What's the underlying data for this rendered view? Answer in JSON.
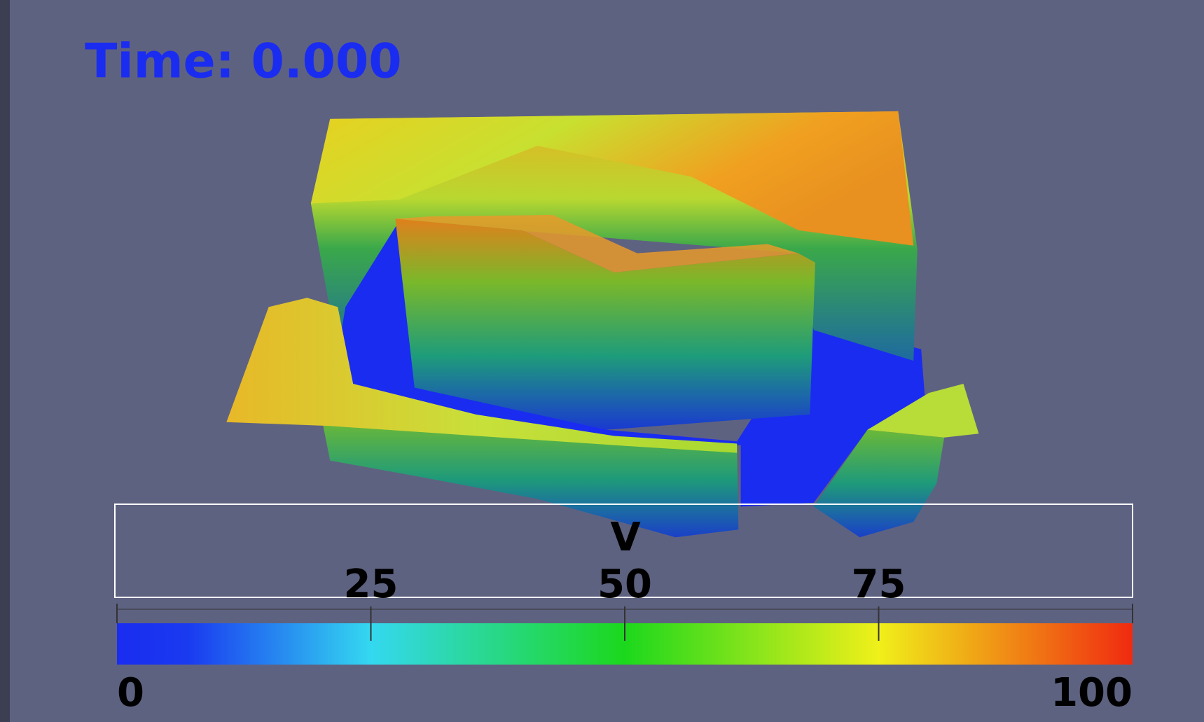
{
  "time_label": "Time: 0.000",
  "colorbar": {
    "title": "V",
    "lim": [
      0,
      100
    ],
    "ticks": [
      25,
      50,
      75
    ]
  }
}
